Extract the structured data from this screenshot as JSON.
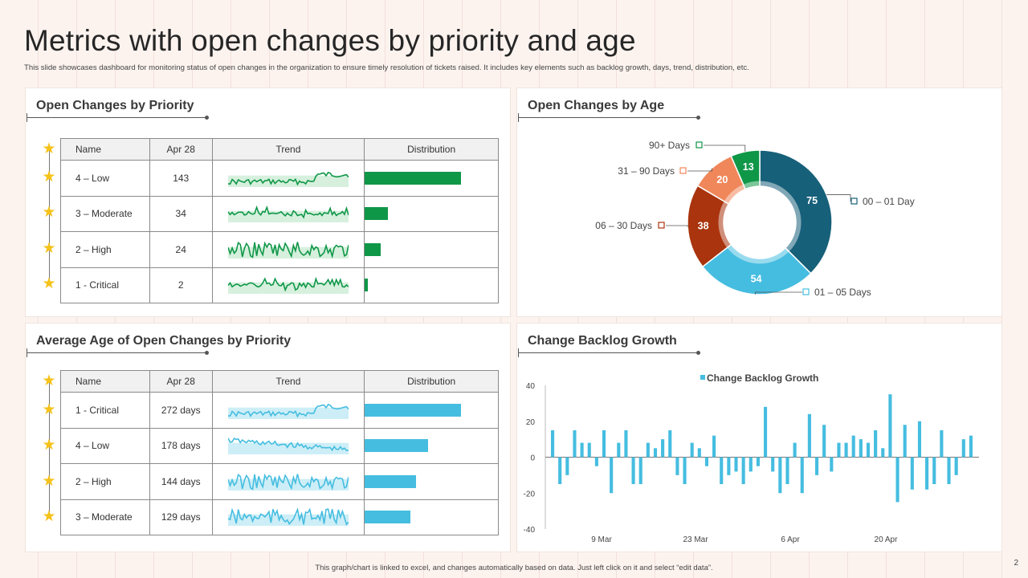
{
  "page": {
    "title": "Metrics with open changes by priority and age",
    "subtitle": "This slide showcases dashboard for monitoring status of open changes in the organization to ensure timely resolution of tickets raised. It includes key elements such as backlog growth, days, trend, distribution, etc.",
    "footer": "This graph/chart is linked to excel, and changes automatically based on data. Just left click on it and select “edit data”.",
    "page_number": "2"
  },
  "colors": {
    "green": "#0f9748",
    "blue": "#45bde0",
    "star": "#f5c21a"
  },
  "priority_panel": {
    "title": "Open Changes by Priority",
    "headers": [
      "Name",
      "Apr 28",
      "Trend",
      "Distribution"
    ],
    "rows": [
      {
        "name": "4 – Low",
        "value": "143",
        "dist": 143
      },
      {
        "name": "3 – Moderate",
        "value": "34",
        "dist": 34
      },
      {
        "name": "2 – High",
        "value": "24",
        "dist": 24
      },
      {
        "name": "1 - Critical",
        "value": "2",
        "dist": 2
      }
    ],
    "dist_max": 143
  },
  "age_priority_panel": {
    "title": "Average Age of Open Changes by Priority",
    "headers": [
      "Name",
      "Apr 28",
      "Trend",
      "Distribution"
    ],
    "rows": [
      {
        "name": "1 - Critical",
        "value": "272 days",
        "dist": 272
      },
      {
        "name": "4 – Low",
        "value": "178 days",
        "dist": 178
      },
      {
        "name": "2 – High",
        "value": "144 days",
        "dist": 144
      },
      {
        "name": "3 – Moderate",
        "value": "129 days",
        "dist": 129
      }
    ],
    "dist_max": 272
  },
  "age_panel": {
    "title": "Open Changes by Age",
    "slices": [
      {
        "label": "00 – 01 Day",
        "value": 75,
        "color": "#17607a"
      },
      {
        "label": "01 – 05 Days",
        "value": 54,
        "color": "#45bde0"
      },
      {
        "label": "06 – 30 Days",
        "value": 38,
        "color": "#a9340d"
      },
      {
        "label": "31 – 90 Days",
        "value": 20,
        "color": "#f0875a"
      },
      {
        "label": "90+ Days",
        "value": 13,
        "color": "#0f9748"
      }
    ]
  },
  "backlog_panel": {
    "title": "Change Backlog Growth"
  },
  "chart_data": {
    "type": "bar",
    "title": "Change Backlog Growth",
    "series": [
      {
        "name": "Change Backlog Growth",
        "values": [
          15,
          -15,
          -10,
          15,
          8,
          8,
          -5,
          15,
          -20,
          8,
          15,
          -15,
          -15,
          8,
          5,
          10,
          15,
          -10,
          -15,
          8,
          5,
          -5,
          12,
          -15,
          -10,
          -8,
          -15,
          -8,
          -5,
          28,
          -8,
          -20,
          -15,
          8,
          -20,
          24,
          -10,
          18,
          -8,
          8,
          8,
          12,
          10,
          8,
          15,
          5,
          35,
          -25,
          18,
          -18,
          20,
          -18,
          -15,
          15,
          -15,
          -10,
          10,
          12
        ]
      }
    ],
    "x_tick_labels": [
      "9 Mar",
      "23 Mar",
      "6 Apr",
      "20 Apr"
    ],
    "y_ticks": [
      "40",
      "20",
      "0",
      "-20",
      "-40"
    ],
    "ylim": [
      -40,
      40
    ],
    "legend": "top-center",
    "color": "#45bde0"
  }
}
